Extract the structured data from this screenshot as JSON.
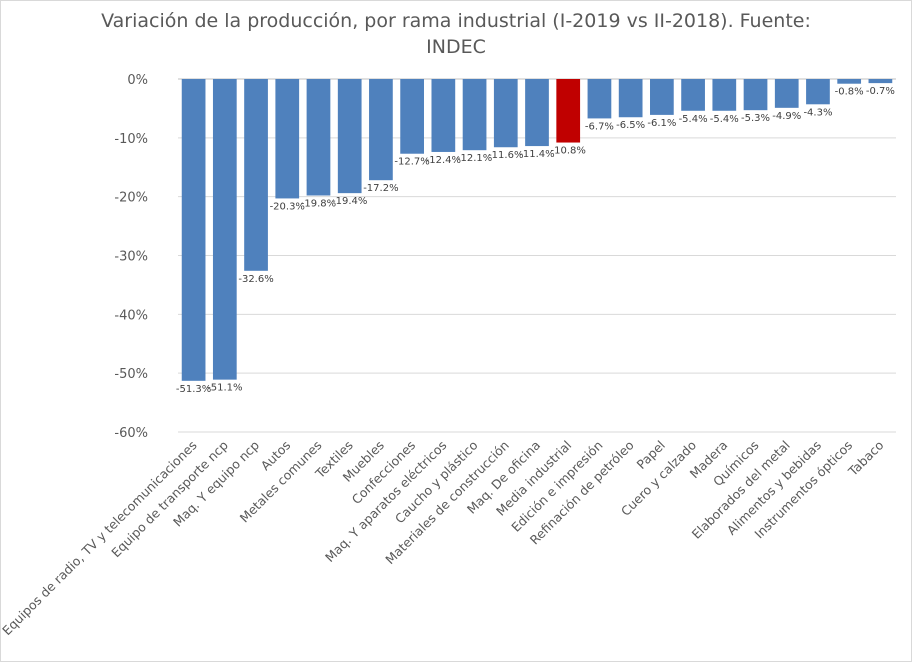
{
  "chart_data": {
    "type": "bar",
    "title_line1": "Variación  de la producción,  por rama industrial (I-2019 vs II-2018). Fuente:",
    "title_line2": "INDEC",
    "xlabel": "",
    "ylabel": "",
    "ylim": [
      -60,
      0
    ],
    "yticks": [
      0,
      -10,
      -20,
      -30,
      -40,
      -50,
      -60
    ],
    "ytick_labels": [
      "0%",
      "-10%",
      "-20%",
      "-30%",
      "-40%",
      "-50%",
      "-60%"
    ],
    "grid": true,
    "legend": "none",
    "colors": {
      "default": "#4f81bd",
      "highlight": "#c00000"
    },
    "highlight_category": "Media industrial",
    "categories": [
      "Equipos de radio, TV y telecomunicaciones",
      "Equipo de transporte ncp",
      "Maq. Y equipo ncp",
      "Autos",
      "Metales comunes",
      "Textiles",
      "Muebles",
      "Confecciones",
      "Maq. Y aparatos eléctricos",
      "Caucho y plástico",
      "Materiales de construcción",
      "Maq. De oficina",
      "Media industrial",
      "Edición e impresión",
      "Refinación de petróleo",
      "Papel",
      "Cuero y calzado",
      "Madera",
      "Químicos",
      "Elaborados del metal",
      "Alimentos y bebidas",
      "Instrumentos ópticos",
      "Tabaco"
    ],
    "values": [
      -51.3,
      -51.1,
      -32.6,
      -20.3,
      -19.8,
      -19.4,
      -17.2,
      -12.7,
      -12.4,
      -12.1,
      -11.6,
      -11.4,
      -10.8,
      -6.7,
      -6.5,
      -6.1,
      -5.4,
      -5.4,
      -5.3,
      -4.9,
      -4.3,
      -0.8,
      -0.7
    ],
    "data_labels": [
      "-51.3%",
      "-51.1%",
      "-32.6%",
      "-20.3%",
      "-19.8%",
      "-19.4%",
      "-17.2%",
      "-12.7%",
      "-12.4%",
      "-12.1%",
      "-11.6%",
      "-11.4%",
      "-10.8%",
      "-6.7%",
      "-6.5%",
      "-6.1%",
      "-5.4%",
      "-5.4%",
      "-5.3%",
      "-4.9%",
      "-4.3%",
      "-0.8%",
      "-0.7%"
    ]
  }
}
